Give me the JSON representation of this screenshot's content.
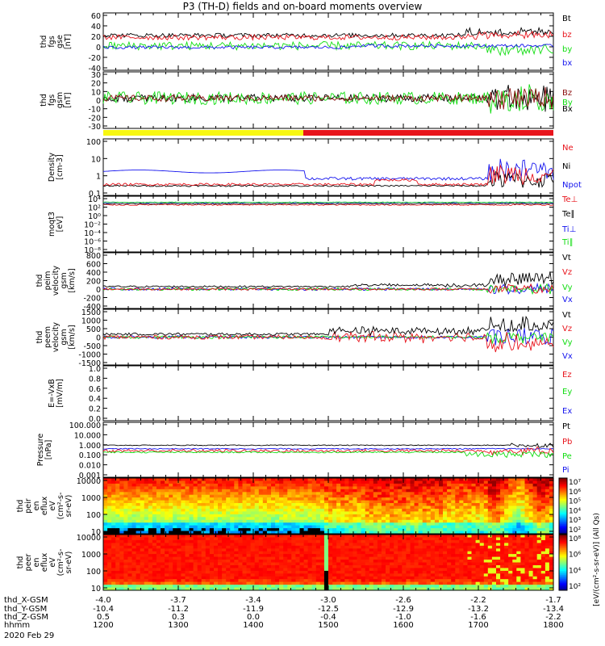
{
  "title": "P3 (TH-D) fields and on-board moments overview",
  "colors": {
    "black": "#000000",
    "red": "#e8141c",
    "green": "#11dd11",
    "blue": "#1414ee",
    "yellow": "#f7f711",
    "darkred": "#8b0d0d"
  },
  "chart_data": [
    {
      "type": "line",
      "id": "fgs",
      "ylabel": [
        "thd",
        "fgs",
        "gse",
        "[nT]"
      ],
      "ylim": [
        -40,
        60
      ],
      "ticks": [
        "60",
        "40",
        "20",
        "0",
        "-20",
        "-40"
      ],
      "series": [
        {
          "name": "Bt",
          "color": "black"
        },
        {
          "name": "bz",
          "color": "red"
        },
        {
          "name": "by",
          "color": "green"
        },
        {
          "name": "bx",
          "color": "blue"
        }
      ]
    },
    {
      "type": "line",
      "id": "fgs_gsm",
      "ylabel": [
        "thd",
        "fgs",
        "gsm",
        "[nT]"
      ],
      "ylim": [
        -35,
        30
      ],
      "ticks": [
        "30",
        "20",
        "10",
        "0",
        "-10",
        "-20",
        "-30"
      ],
      "series": [
        {
          "name": "Bz",
          "color": "darkred"
        },
        {
          "name": "By",
          "color": "green"
        },
        {
          "name": "Bx",
          "color": "black"
        }
      ]
    },
    {
      "type": "bar",
      "id": "mode_bar",
      "segments": [
        {
          "from": "12:00",
          "to": "14:40",
          "color": "yellow"
        },
        {
          "from": "14:40",
          "to": "18:00",
          "color": "red"
        }
      ]
    },
    {
      "type": "line",
      "id": "density",
      "ylabel": [
        "Density",
        "[cm-3]"
      ],
      "scale": "log",
      "ticks": [
        "100",
        "10",
        "1",
        "0.1"
      ],
      "series": [
        {
          "name": "Ne",
          "color": "red"
        },
        {
          "name": "Ni",
          "color": "black"
        },
        {
          "name": "Npot",
          "color": "blue"
        }
      ]
    },
    {
      "type": "line",
      "id": "temp",
      "ylabel": [
        "moqt3",
        "[eV]"
      ],
      "scale": "log",
      "ticks": [
        "10⁴",
        "10²",
        "10⁰",
        "10⁻²",
        "10⁻⁴",
        "10⁻⁶",
        "10⁻⁸"
      ],
      "series": [
        {
          "name": "Te⊥",
          "color": "red"
        },
        {
          "name": "Te∥",
          "color": "black"
        },
        {
          "name": "Ti⊥",
          "color": "blue"
        },
        {
          "name": "Ti∥",
          "color": "green"
        }
      ]
    },
    {
      "type": "line",
      "id": "peim_v",
      "ylabel": [
        "thd",
        "peim",
        "velocity",
        "gsm",
        "[km/s]"
      ],
      "ylim": [
        -400,
        800
      ],
      "ticks": [
        "800",
        "600",
        "400",
        "200",
        "0",
        "-200",
        "-400"
      ],
      "series": [
        {
          "name": "Vt",
          "color": "black"
        },
        {
          "name": "Vz",
          "color": "red"
        },
        {
          "name": "Vy",
          "color": "green"
        },
        {
          "name": "Vx",
          "color": "blue"
        }
      ]
    },
    {
      "type": "line",
      "id": "peem_v",
      "ylabel": [
        "thd",
        "peem",
        "velocity",
        "gsm",
        "[km/s]"
      ],
      "ylim": [
        -1500,
        1500
      ],
      "ticks": [
        "1500",
        "1000",
        "500",
        "0",
        "-500",
        "-1000",
        "-1500"
      ],
      "series": [
        {
          "name": "Vt",
          "color": "black"
        },
        {
          "name": "Vz",
          "color": "red"
        },
        {
          "name": "Vy",
          "color": "green"
        },
        {
          "name": "Vx",
          "color": "blue"
        }
      ]
    },
    {
      "type": "line",
      "id": "efield",
      "ylabel": [
        "E=-VxB",
        "[mV/m]"
      ],
      "ylim": [
        0,
        1
      ],
      "ticks": [
        "1.0",
        "0.8",
        "0.6",
        "0.4",
        "0.2",
        "0.0"
      ],
      "series": [
        {
          "name": "Ez",
          "color": "red"
        },
        {
          "name": "Ey",
          "color": "green"
        },
        {
          "name": "Ex",
          "color": "blue"
        }
      ]
    },
    {
      "type": "line",
      "id": "pressure",
      "ylabel": [
        "Pressure",
        "[nPa]"
      ],
      "scale": "log",
      "ticks": [
        "100.000",
        "10.000",
        "1.000",
        "0.100",
        "0.010",
        "0.001"
      ],
      "series": [
        {
          "name": "Pt",
          "color": "black"
        },
        {
          "name": "Pb",
          "color": "red"
        },
        {
          "name": "Pe",
          "color": "green"
        },
        {
          "name": "Pi",
          "color": "blue"
        }
      ]
    },
    {
      "type": "heatmap",
      "id": "peir",
      "ylabel": [
        "thd",
        "peir",
        "en",
        "eflux",
        "eV",
        "(cm²-s-",
        "sr-eV)"
      ],
      "ticks": [
        "10000",
        "1000",
        "100",
        "10"
      ]
    },
    {
      "type": "heatmap",
      "id": "peer",
      "ylabel": [
        "thd",
        "peer",
        "en",
        "eflux",
        "eV",
        "(cm²-s-",
        "sr-eV)"
      ],
      "ticks": [
        "10000",
        "1000",
        "100",
        "10"
      ]
    }
  ],
  "colorbar": {
    "label": "[eV/(cm²-s-sr-eV)] (All Qs)",
    "labels_top": [
      "10⁷",
      "10⁶",
      "10⁵",
      "10⁴",
      "10³",
      "10²"
    ],
    "labels_bottom": [
      "10⁸",
      "10⁶",
      "10⁴",
      "10²"
    ]
  },
  "xaxis": {
    "row_labels": [
      "thd_X-GSM",
      "thd_Y-GSM",
      "thd_Z-GSM",
      "hhmm",
      "2020 Feb 29"
    ],
    "columns": [
      [
        "-4.0",
        "-10.4",
        "0.5",
        "1200"
      ],
      [
        "-3.7",
        "-11.2",
        "0.3",
        "1300"
      ],
      [
        "-3.4",
        "-11.9",
        "0.0",
        "1400"
      ],
      [
        "-3.0",
        "-12.5",
        "-0.4",
        "1500"
      ],
      [
        "-2.6",
        "-12.9",
        "-1.0",
        "1600"
      ],
      [
        "-2.2",
        "-13.2",
        "-1.6",
        "1700"
      ],
      [
        "-1.7",
        "-13.4",
        "-2.2",
        "1800"
      ]
    ]
  }
}
